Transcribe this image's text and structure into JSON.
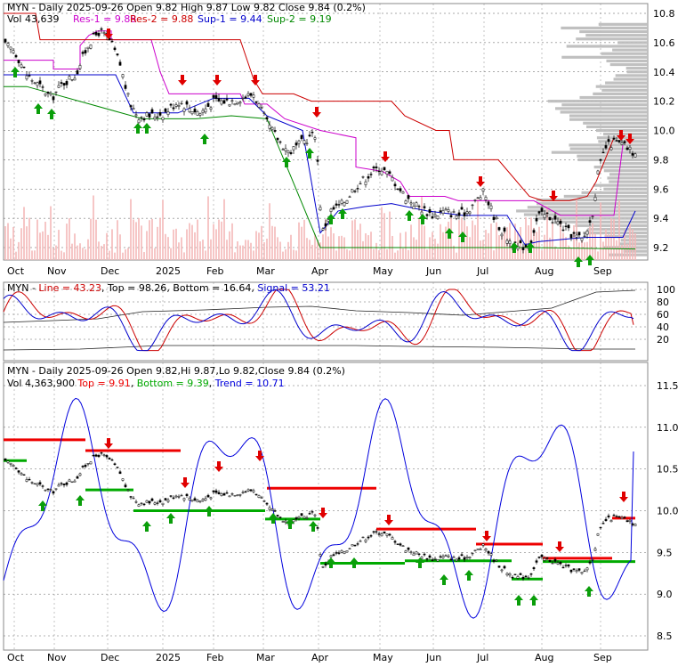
{
  "chart_data": [
    {
      "type": "candlestick",
      "header": {
        "symbol": "MYN",
        "title": "MYN - Daily 2025-09-26 Open 9.82  High 9.87  Low 9.82  Close 9.84 (0.2%)",
        "vol": "Vol 43,639",
        "res1": "Res-1 = 9.88",
        "res2": "Res-2 = 9.88",
        "sup1": "Sup-1 = 9.44",
        "sup2": "Sup-2 = 9.19"
      },
      "y_ticks": [
        "10.8",
        "10.6",
        "10.4",
        "10.2",
        "10.0",
        "9.8",
        "9.6",
        "9.4",
        "9.2"
      ],
      "ylim": [
        9.1,
        10.85
      ],
      "x_tick_labels": [
        "Oct",
        "Nov",
        "Dec",
        "2025",
        "Feb",
        "Mar",
        "Apr",
        "May",
        "Jun",
        "Jul",
        "Aug",
        "Sep"
      ],
      "last_price": 9.84,
      "colors": {
        "res1": "#cc00cc",
        "res2": "#cc0000",
        "sup1": "#0000cc",
        "sup2": "#008800",
        "volume_bar": "#f4b8b8",
        "volume_profile": "#bdbdbd",
        "up_arrow": "#0a9e0a",
        "down_arrow": "#e00000"
      }
    },
    {
      "type": "line",
      "header": {
        "symbol": "MYN",
        "line": "Line = 43.23",
        "top": "Top = 98.26",
        "bottom": "Bottom = 16.64",
        "signal": "Signal = 53.21"
      },
      "y_ticks": [
        "100",
        "80",
        "60",
        "40",
        "20"
      ],
      "ylim": [
        0,
        105
      ],
      "colors": {
        "line": "#cc0000",
        "signal": "#0000cc",
        "top": "#222222",
        "bottom": "#222222"
      }
    },
    {
      "type": "candlestick",
      "header": {
        "title": "MYN - Daily 2025-09-26 Open 9.82,Hi 9.87,Lo 9.82,Close 9.84 (0.2%)",
        "vol": "Vol 4,363,900",
        "top": "Top = 9.91",
        "bottom": "Bottom = 9.39",
        "trend": "Trend = 10.71"
      },
      "y_ticks": [
        "11.5",
        "11.0",
        "10.5",
        "10.0",
        "9.5",
        "9.0",
        "8.5"
      ],
      "ylim": [
        8.3,
        11.75
      ],
      "colors": {
        "top": "#ee0000",
        "bottom": "#00aa00",
        "trend": "#0000dd"
      }
    }
  ],
  "x_axis_labels": [
    "Oct",
    "Nov",
    "Dec",
    "2025",
    "Feb",
    "Mar",
    "Apr",
    "May",
    "Jun",
    "Jul",
    "Aug",
    "Sep"
  ]
}
